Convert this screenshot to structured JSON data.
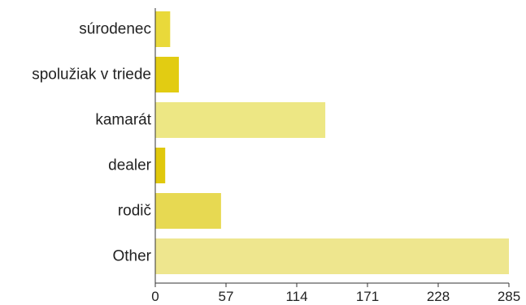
{
  "chart_data": {
    "type": "bar",
    "orientation": "horizontal",
    "title": "",
    "xlabel": "",
    "ylabel": "",
    "categories": [
      "súrodenec",
      "spolužiak v triede",
      "kamarát",
      "dealer",
      "rodič",
      "Other"
    ],
    "values": [
      12,
      19,
      137,
      8,
      53,
      285
    ],
    "colors": [
      "#e9d93a",
      "#e2cc12",
      "#ede784",
      "#e0c80c",
      "#e7d952",
      "#eee68e"
    ],
    "xlim": [
      0,
      285
    ],
    "xticks": [
      "0",
      "57",
      "114",
      "171",
      "228",
      "285"
    ],
    "grid": false,
    "legend": "none"
  }
}
